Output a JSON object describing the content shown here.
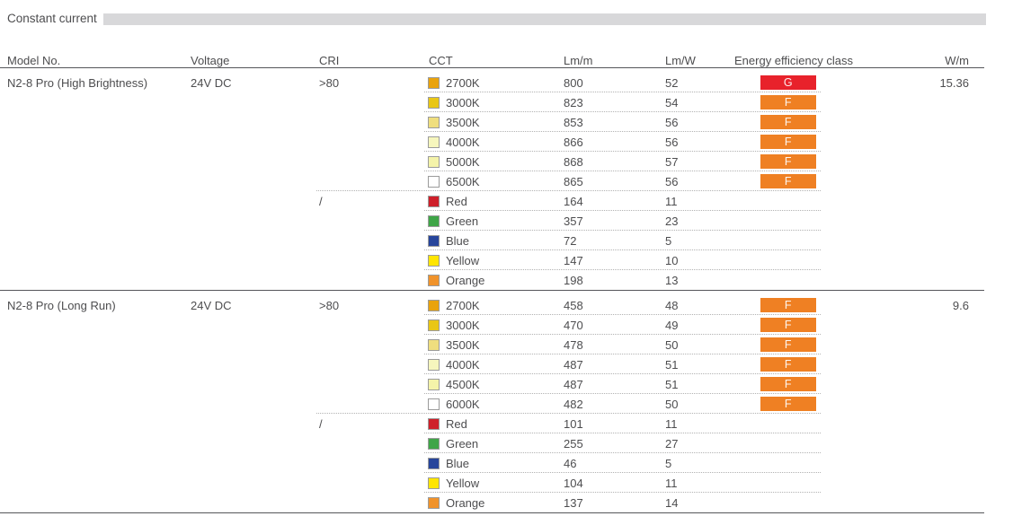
{
  "section": {
    "title": "Constant current"
  },
  "table": {
    "columns": [
      {
        "key": "model",
        "label": "Model No."
      },
      {
        "key": "voltage",
        "label": "Voltage"
      },
      {
        "key": "cri",
        "label": "CRI"
      },
      {
        "key": "cct",
        "label": "CCT"
      },
      {
        "key": "lm_m",
        "label": "Lm/m"
      },
      {
        "key": "lm_w",
        "label": "Lm/W"
      },
      {
        "key": "eec",
        "label": "Energy efficiency class"
      },
      {
        "key": "w_m",
        "label": "W/m"
      }
    ],
    "badge_colors": {
      "G": "#e8222b",
      "F": "#ef8023"
    },
    "models": [
      {
        "model": "N2-8 Pro (High Brightness)",
        "voltage": "24V DC",
        "w_per_m": "15.36",
        "groups": [
          {
            "cri": ">80",
            "rows": [
              {
                "swatch_color": "#e9a30d",
                "label": "2700K",
                "lm_m": "800",
                "lm_w": "52",
                "eec": "G"
              },
              {
                "swatch_color": "#e9c616",
                "label": "3000K",
                "lm_m": "823",
                "lm_w": "54",
                "eec": "F"
              },
              {
                "swatch_color": "#efde7e",
                "label": "3500K",
                "lm_m": "853",
                "lm_w": "56",
                "eec": "F"
              },
              {
                "swatch_color": "#f6f6bd",
                "label": "4000K",
                "lm_m": "866",
                "lm_w": "56",
                "eec": "F"
              },
              {
                "swatch_color": "#f4f3a9",
                "label": "5000K",
                "lm_m": "868",
                "lm_w": "57",
                "eec": "F"
              },
              {
                "swatch_color": "#ffffff",
                "label": "6500K",
                "lm_m": "865",
                "lm_w": "56",
                "eec": "F"
              }
            ]
          },
          {
            "cri": "/",
            "rows": [
              {
                "swatch_color": "#ce202a",
                "label": "Red",
                "lm_m": "164",
                "lm_w": "11",
                "eec": ""
              },
              {
                "swatch_color": "#3fa548",
                "label": "Green",
                "lm_m": "357",
                "lm_w": "23",
                "eec": ""
              },
              {
                "swatch_color": "#27459b",
                "label": "Blue",
                "lm_m": "72",
                "lm_w": "5",
                "eec": ""
              },
              {
                "swatch_color": "#ffe500",
                "label": "Yellow",
                "lm_m": "147",
                "lm_w": "10",
                "eec": ""
              },
              {
                "swatch_color": "#f0932b",
                "label": "Orange",
                "lm_m": "198",
                "lm_w": "13",
                "eec": ""
              }
            ]
          }
        ]
      },
      {
        "model": "N2-8 Pro (Long Run)",
        "voltage": "24V DC",
        "w_per_m": "9.6",
        "groups": [
          {
            "cri": ">80",
            "rows": [
              {
                "swatch_color": "#e9a30d",
                "label": "2700K",
                "lm_m": "458",
                "lm_w": "48",
                "eec": "F"
              },
              {
                "swatch_color": "#e9c616",
                "label": "3000K",
                "lm_m": "470",
                "lm_w": "49",
                "eec": "F"
              },
              {
                "swatch_color": "#efde7e",
                "label": "3500K",
                "lm_m": "478",
                "lm_w": "50",
                "eec": "F"
              },
              {
                "swatch_color": "#f6f6bd",
                "label": "4000K",
                "lm_m": "487",
                "lm_w": "51",
                "eec": "F"
              },
              {
                "swatch_color": "#f4f3a9",
                "label": "4500K",
                "lm_m": "487",
                "lm_w": "51",
                "eec": "F"
              },
              {
                "swatch_color": "#ffffff",
                "label": "6000K",
                "lm_m": "482",
                "lm_w": "50",
                "eec": "F"
              }
            ]
          },
          {
            "cri": "/",
            "rows": [
              {
                "swatch_color": "#ce202a",
                "label": "Red",
                "lm_m": "101",
                "lm_w": "11",
                "eec": ""
              },
              {
                "swatch_color": "#3fa548",
                "label": "Green",
                "lm_m": "255",
                "lm_w": "27",
                "eec": ""
              },
              {
                "swatch_color": "#27459b",
                "label": "Blue",
                "lm_m": "46",
                "lm_w": "5",
                "eec": ""
              },
              {
                "swatch_color": "#ffe500",
                "label": "Yellow",
                "lm_m": "104",
                "lm_w": "11",
                "eec": ""
              },
              {
                "swatch_color": "#f0932b",
                "label": "Orange",
                "lm_m": "137",
                "lm_w": "14",
                "eec": ""
              }
            ]
          }
        ]
      }
    ]
  }
}
